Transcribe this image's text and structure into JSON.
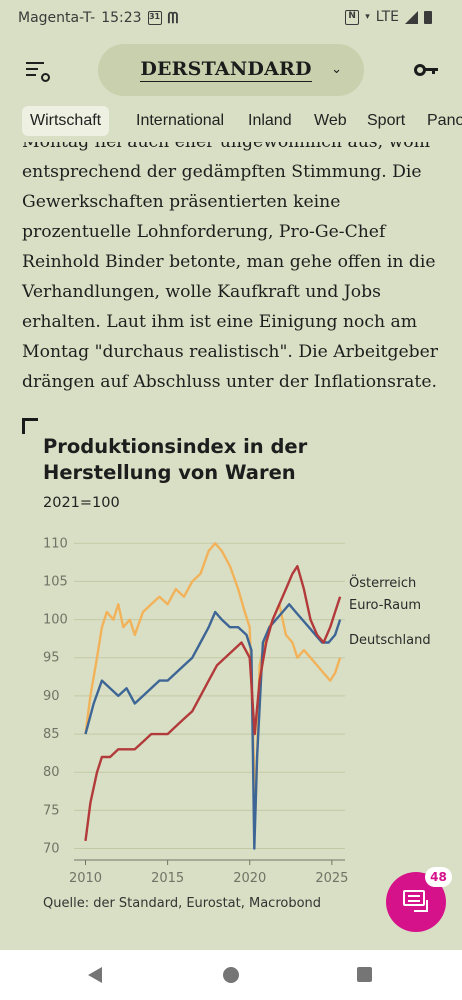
{
  "status_bar": {
    "carrier": "Magenta-T-",
    "time": "15:23",
    "calendar_day": "31",
    "network": "LTE"
  },
  "header": {
    "brand": "DERSTANDARD"
  },
  "nav": {
    "tabs": [
      {
        "label": "Wirtschaft",
        "active": true
      },
      {
        "label": "International",
        "active": false
      },
      {
        "label": "Inland",
        "active": false
      },
      {
        "label": "Web",
        "active": false
      },
      {
        "label": "Sport",
        "active": false
      },
      {
        "label": "Panorama",
        "active": false
      }
    ]
  },
  "article": {
    "paragraph": "Montag fiel auch eher ungewöhnlich aus, wohl entsprechend der gedämpften Stimmung. Die Gewerkschaften präsentierten keine prozentuelle Lohnforderung, Pro-Ge-Chef Reinhold Binder betonte, man gehe offen in die Verhandlungen, wolle Kaufkraft und Jobs erhalten. Laut ihm ist eine Einigung noch am Montag \"durchaus realistisch\". Die Arbeitgeber drängen auf Abschluss unter der Inflationsrate."
  },
  "chart": {
    "source": "Quelle: der Standard, Eurostat, Macrobond"
  },
  "chart_data": {
    "type": "line",
    "title": "Produktionsindex in der Herstellung von Waren",
    "subtitle": "2021=100",
    "xlim": [
      2009.3,
      2025.8
    ],
    "ylim": [
      68.5,
      112
    ],
    "x_ticks": [
      2010,
      2015,
      2020,
      2025
    ],
    "y_ticks": [
      70,
      75,
      80,
      85,
      90,
      95,
      100,
      105,
      110
    ],
    "grid": true,
    "series": [
      {
        "name": "Deutschland",
        "color": "#f2b25a",
        "points": [
          [
            2010.0,
            85
          ],
          [
            2010.3,
            90
          ],
          [
            2010.7,
            95
          ],
          [
            2011.0,
            99
          ],
          [
            2011.3,
            101
          ],
          [
            2011.7,
            100
          ],
          [
            2012.0,
            102
          ],
          [
            2012.3,
            99
          ],
          [
            2012.7,
            100
          ],
          [
            2013.0,
            98
          ],
          [
            2013.5,
            101
          ],
          [
            2014.0,
            102
          ],
          [
            2014.5,
            103
          ],
          [
            2015.0,
            102
          ],
          [
            2015.5,
            104
          ],
          [
            2016.0,
            103
          ],
          [
            2016.5,
            105
          ],
          [
            2017.0,
            106
          ],
          [
            2017.5,
            109
          ],
          [
            2017.9,
            110
          ],
          [
            2018.3,
            109
          ],
          [
            2018.8,
            107
          ],
          [
            2019.3,
            104
          ],
          [
            2019.7,
            101
          ],
          [
            2020.0,
            99
          ],
          [
            2020.2,
            85
          ],
          [
            2020.35,
            75
          ],
          [
            2020.6,
            94
          ],
          [
            2021.0,
            98
          ],
          [
            2021.4,
            100
          ],
          [
            2021.8,
            102
          ],
          [
            2022.2,
            98
          ],
          [
            2022.6,
            97
          ],
          [
            2022.9,
            95
          ],
          [
            2023.3,
            96
          ],
          [
            2023.7,
            95
          ],
          [
            2024.1,
            94
          ],
          [
            2024.5,
            93
          ],
          [
            2024.9,
            92
          ],
          [
            2025.2,
            93
          ],
          [
            2025.5,
            95
          ]
        ]
      },
      {
        "name": "Euro-Raum",
        "color": "#3d6595",
        "points": [
          [
            2010.0,
            85
          ],
          [
            2010.5,
            89
          ],
          [
            2011.0,
            92
          ],
          [
            2011.5,
            91
          ],
          [
            2012.0,
            90
          ],
          [
            2012.5,
            91
          ],
          [
            2013.0,
            89
          ],
          [
            2013.5,
            90
          ],
          [
            2014.0,
            91
          ],
          [
            2014.5,
            92
          ],
          [
            2015.0,
            92
          ],
          [
            2015.5,
            93
          ],
          [
            2016.0,
            94
          ],
          [
            2016.5,
            95
          ],
          [
            2017.0,
            97
          ],
          [
            2017.5,
            99
          ],
          [
            2017.9,
            101
          ],
          [
            2018.3,
            100
          ],
          [
            2018.8,
            99
          ],
          [
            2019.3,
            99
          ],
          [
            2019.8,
            98
          ],
          [
            2020.1,
            96
          ],
          [
            2020.28,
            70
          ],
          [
            2020.45,
            82
          ],
          [
            2020.8,
            97
          ],
          [
            2021.2,
            99
          ],
          [
            2021.6,
            100
          ],
          [
            2022.0,
            101
          ],
          [
            2022.4,
            102
          ],
          [
            2022.8,
            101
          ],
          [
            2023.2,
            100
          ],
          [
            2023.6,
            99
          ],
          [
            2024.0,
            98
          ],
          [
            2024.4,
            97
          ],
          [
            2024.8,
            97
          ],
          [
            2025.2,
            98
          ],
          [
            2025.5,
            100
          ]
        ]
      },
      {
        "name": "Österreich",
        "color": "#b23a3a",
        "points": [
          [
            2010.0,
            71
          ],
          [
            2010.3,
            76
          ],
          [
            2010.7,
            80
          ],
          [
            2011.0,
            82
          ],
          [
            2011.5,
            82
          ],
          [
            2012.0,
            83
          ],
          [
            2012.5,
            83
          ],
          [
            2013.0,
            83
          ],
          [
            2013.5,
            84
          ],
          [
            2014.0,
            85
          ],
          [
            2014.5,
            85
          ],
          [
            2015.0,
            85
          ],
          [
            2015.5,
            86
          ],
          [
            2016.0,
            87
          ],
          [
            2016.5,
            88
          ],
          [
            2017.0,
            90
          ],
          [
            2017.5,
            92
          ],
          [
            2018.0,
            94
          ],
          [
            2018.5,
            95
          ],
          [
            2019.0,
            96
          ],
          [
            2019.5,
            97
          ],
          [
            2020.0,
            95
          ],
          [
            2020.3,
            85
          ],
          [
            2020.6,
            92
          ],
          [
            2021.0,
            97
          ],
          [
            2021.4,
            100
          ],
          [
            2021.8,
            102
          ],
          [
            2022.2,
            104
          ],
          [
            2022.6,
            106
          ],
          [
            2022.9,
            107
          ],
          [
            2023.3,
            104
          ],
          [
            2023.7,
            100
          ],
          [
            2024.1,
            98
          ],
          [
            2024.5,
            97
          ],
          [
            2024.9,
            99
          ],
          [
            2025.2,
            101
          ],
          [
            2025.5,
            103
          ]
        ]
      }
    ]
  }
}
